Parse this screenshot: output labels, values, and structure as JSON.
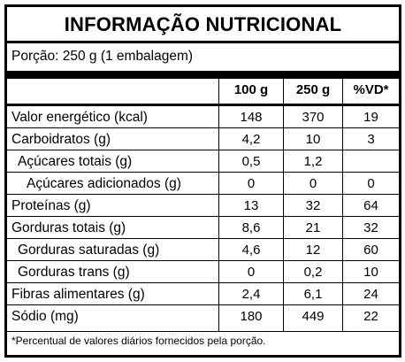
{
  "title": "INFORMAÇÃO NUTRICIONAL",
  "portion": "Porção: 250 g (1 embalagem)",
  "columns": [
    "100 g",
    "250 g",
    "%VD*"
  ],
  "rows": [
    {
      "label": "Valor energético (kcal)",
      "indent": 0,
      "values": [
        "148",
        "370",
        "19"
      ]
    },
    {
      "label": "Carboidratos (g)",
      "indent": 0,
      "values": [
        "4,2",
        "10",
        "3"
      ]
    },
    {
      "label": "Açúcares totais (g)",
      "indent": 1,
      "values": [
        "0,5",
        "1,2",
        ""
      ]
    },
    {
      "label": "Açúcares adicionados (g)",
      "indent": 2,
      "values": [
        "0",
        "0",
        "0"
      ]
    },
    {
      "label": "Proteínas (g)",
      "indent": 0,
      "values": [
        "13",
        "32",
        "64"
      ]
    },
    {
      "label": "Gorduras totais (g)",
      "indent": 0,
      "values": [
        "8,6",
        "21",
        "32"
      ]
    },
    {
      "label": "Gorduras saturadas (g)",
      "indent": 1,
      "values": [
        "4,6",
        "12",
        "60"
      ]
    },
    {
      "label": "Gorduras trans (g)",
      "indent": 1,
      "values": [
        "0",
        "0,2",
        "10"
      ]
    },
    {
      "label": "Fibras alimentares (g)",
      "indent": 0,
      "values": [
        "2,4",
        "6,1",
        "24"
      ]
    },
    {
      "label": "Sódio (mg)",
      "indent": 0,
      "values": [
        "180",
        "449",
        "22"
      ]
    }
  ],
  "footnote": "*Percentual de valores diários fornecidos pela porção."
}
